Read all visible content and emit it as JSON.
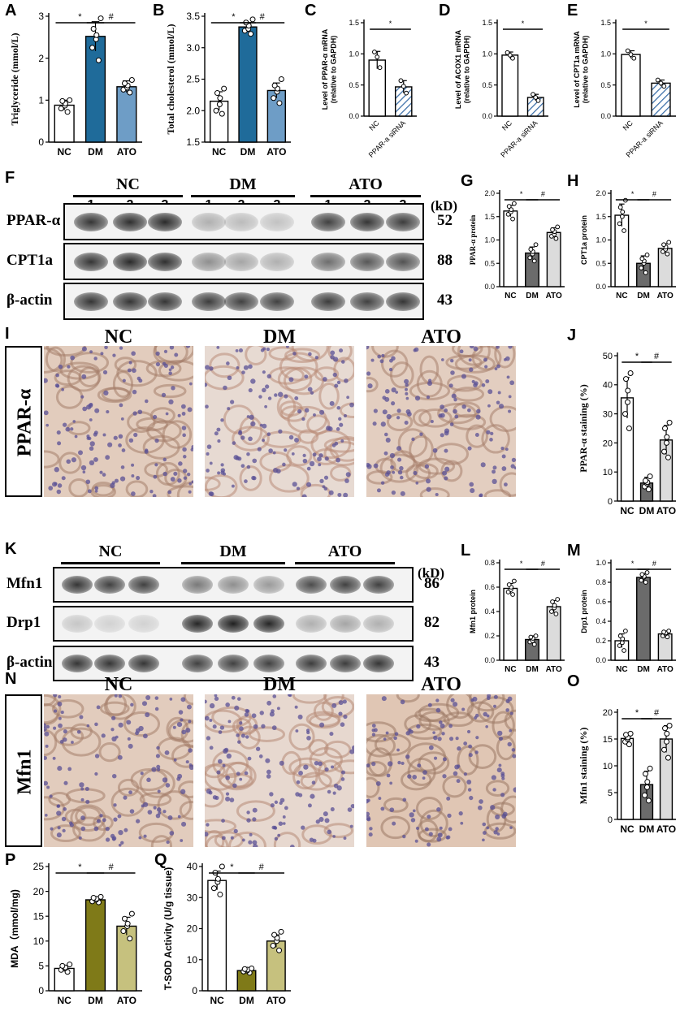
{
  "panel_letters": [
    "A",
    "B",
    "C",
    "D",
    "E",
    "F",
    "G",
    "H",
    "I",
    "J",
    "K",
    "L",
    "M",
    "N",
    "O",
    "P",
    "Q"
  ],
  "colors": {
    "nc": "#ffffff",
    "dm_blue": "#1f6b9a",
    "ato_blue": "#6e9dc6",
    "dm_gray": "#6b6b6b",
    "ato_gray": "#dcdcdc",
    "dm_olive": "#7f7a18",
    "ato_olive": "#c6c17e",
    "siRNA_hatch": "#3b6ea8"
  },
  "western_F": {
    "groups": [
      "NC",
      "DM",
      "ATO"
    ],
    "lanes": [
      "1",
      "2",
      "3",
      "1",
      "2",
      "3",
      "1",
      "2",
      "3"
    ],
    "kd_label": "(kD)",
    "rows": [
      {
        "name": "PPAR-α",
        "kd": "52",
        "intensity": [
          0.85,
          0.88,
          0.9,
          0.3,
          0.25,
          0.22,
          0.8,
          0.85,
          0.82
        ]
      },
      {
        "name": "CPT1a",
        "kd": "88",
        "intensity": [
          0.85,
          0.9,
          0.88,
          0.45,
          0.35,
          0.3,
          0.6,
          0.7,
          0.72
        ]
      },
      {
        "name": "β-actin",
        "kd": "43",
        "intensity": [
          0.85,
          0.85,
          0.85,
          0.82,
          0.8,
          0.8,
          0.82,
          0.8,
          0.85
        ]
      }
    ]
  },
  "western_K": {
    "groups": [
      "NC",
      "DM",
      "ATO"
    ],
    "lanes": [
      "1",
      "2",
      "3",
      "1",
      "2",
      "3",
      "1",
      "2",
      "3"
    ],
    "kd_label": "(kD)",
    "rows": [
      {
        "name": "Mfn1",
        "kd": "86",
        "intensity": [
          0.85,
          0.8,
          0.8,
          0.55,
          0.45,
          0.4,
          0.75,
          0.8,
          0.8
        ]
      },
      {
        "name": "Drp1",
        "kd": "82",
        "intensity": [
          0.2,
          0.15,
          0.15,
          0.92,
          0.95,
          0.92,
          0.3,
          0.35,
          0.3
        ]
      },
      {
        "name": "β-actin",
        "kd": "43",
        "intensity": [
          0.85,
          0.85,
          0.85,
          0.8,
          0.8,
          0.8,
          0.82,
          0.82,
          0.85
        ]
      }
    ]
  },
  "micro_I": {
    "side_label": "PPAR-α",
    "titles": [
      "NC",
      "DM",
      "ATO"
    ],
    "stain": [
      0.6,
      0.25,
      0.55
    ]
  },
  "micro_N": {
    "side_label": "Mfn1",
    "titles": [
      "NC",
      "DM",
      "ATO"
    ],
    "stain": [
      0.6,
      0.3,
      0.75
    ]
  },
  "chart_data": [
    {
      "id": "A",
      "type": "bar",
      "categories": [
        "NC",
        "DM",
        "ATO"
      ],
      "values": [
        0.88,
        2.52,
        1.32
      ],
      "errors": [
        0.12,
        0.35,
        0.14
      ],
      "ylabel": "Triglyceride (mmol/L)",
      "ylim": [
        0,
        3
      ],
      "yticks": [
        "0",
        "1",
        "2",
        "3"
      ],
      "tick_values": [
        0,
        1,
        2,
        3
      ],
      "sig": [
        {
          "from": 0,
          "to": 1,
          "mark": "*"
        },
        {
          "from": 1,
          "to": 2,
          "mark": "#"
        }
      ],
      "points": [
        [
          0.72,
          0.8,
          0.87,
          0.92,
          0.98,
          1.0
        ],
        [
          1.95,
          2.25,
          2.45,
          2.55,
          2.7,
          2.95
        ],
        [
          1.18,
          1.25,
          1.3,
          1.35,
          1.4,
          1.48
        ]
      ]
    },
    {
      "id": "B",
      "type": "bar",
      "categories": [
        "NC",
        "DM",
        "ATO"
      ],
      "values": [
        2.15,
        3.33,
        2.32
      ],
      "errors": [
        0.15,
        0.07,
        0.12
      ],
      "ylabel": "Total cholesterol (mmol/L)",
      "ylim": [
        1.5,
        3.5
      ],
      "yticks": [
        "1.5",
        "2.0",
        "2.5",
        "3.0",
        "3.5"
      ],
      "tick_values": [
        1.5,
        2.0,
        2.5,
        3.0,
        3.5
      ],
      "sig": [
        {
          "from": 0,
          "to": 1,
          "mark": "*"
        },
        {
          "from": 1,
          "to": 2,
          "mark": "#"
        }
      ],
      "points": [
        [
          1.95,
          2.0,
          2.1,
          2.2,
          2.28,
          2.35
        ],
        [
          3.22,
          3.27,
          3.3,
          3.35,
          3.4,
          3.45
        ],
        [
          2.12,
          2.2,
          2.3,
          2.35,
          2.4,
          2.5
        ]
      ]
    },
    {
      "id": "C",
      "type": "bar",
      "categories": [
        "NC",
        "PPAR-a siRNA"
      ],
      "values": [
        0.9,
        0.47
      ],
      "errors": [
        0.14,
        0.1
      ],
      "ylabel": "Level of PPAR-α mRNA\n(relative to GAPDH)",
      "ylim": [
        0,
        1.5
      ],
      "yticks": [
        "0.0",
        "0.5",
        "1.0",
        "1.5"
      ],
      "tick_values": [
        0,
        0.5,
        1.0,
        1.5
      ],
      "sig": [
        {
          "from": 0,
          "to": 1,
          "mark": "*"
        }
      ],
      "points": [
        [
          0.78,
          0.95,
          1.03
        ],
        [
          0.37,
          0.48,
          0.57
        ]
      ]
    },
    {
      "id": "D",
      "type": "bar",
      "categories": [
        "NC",
        "PPAR-a siRNA"
      ],
      "values": [
        0.98,
        0.3
      ],
      "errors": [
        0.05,
        0.05
      ],
      "ylabel": "Level of ACOX1 mRNA\n(relative to GAPDH)",
      "ylim": [
        0,
        1.5
      ],
      "yticks": [
        "0.0",
        "0.5",
        "1.0",
        "1.5"
      ],
      "tick_values": [
        0,
        0.5,
        1.0,
        1.5
      ],
      "sig": [
        {
          "from": 0,
          "to": 1,
          "mark": "*"
        }
      ],
      "points": [
        [
          0.93,
          0.98,
          1.02
        ],
        [
          0.25,
          0.3,
          0.35
        ]
      ]
    },
    {
      "id": "E",
      "type": "bar",
      "categories": [
        "NC",
        "PPAR-a siRNA"
      ],
      "values": [
        0.99,
        0.53
      ],
      "errors": [
        0.06,
        0.05
      ],
      "ylabel": "Level of CPT1a mRNA\n(relative to GAPDH)",
      "ylim": [
        0,
        1.5
      ],
      "yticks": [
        "0.0",
        "0.5",
        "1.0",
        "1.5"
      ],
      "tick_values": [
        0,
        0.5,
        1.0,
        1.5
      ],
      "sig": [
        {
          "from": 0,
          "to": 1,
          "mark": "*"
        }
      ],
      "points": [
        [
          0.93,
          0.99,
          1.05
        ],
        [
          0.48,
          0.53,
          0.58
        ]
      ]
    },
    {
      "id": "G",
      "type": "bar",
      "categories": [
        "NC",
        "DM",
        "ATO"
      ],
      "values": [
        1.62,
        0.72,
        1.16
      ],
      "errors": [
        0.12,
        0.13,
        0.1
      ],
      "ylabel": "PPAR-α protein",
      "ylim": [
        0,
        2.0
      ],
      "yticks": [
        "0.0",
        "0.5",
        "1.0",
        "1.5",
        "2.0"
      ],
      "tick_values": [
        0,
        0.5,
        1.0,
        1.5,
        2.0
      ],
      "sig": [
        {
          "from": 0,
          "to": 1,
          "mark": "*"
        },
        {
          "from": 1,
          "to": 2,
          "mark": "#"
        }
      ],
      "points": [
        [
          1.45,
          1.55,
          1.6,
          1.65,
          1.72,
          1.78
        ],
        [
          0.55,
          0.62,
          0.7,
          0.75,
          0.8,
          0.9
        ],
        [
          1.03,
          1.08,
          1.12,
          1.18,
          1.22,
          1.28
        ]
      ]
    },
    {
      "id": "H",
      "type": "bar",
      "categories": [
        "NC",
        "DM",
        "ATO"
      ],
      "values": [
        1.53,
        0.5,
        0.82
      ],
      "errors": [
        0.24,
        0.16,
        0.1
      ],
      "ylabel": "CPT1a protein",
      "ylim": [
        0,
        2.0
      ],
      "yticks": [
        "0.0",
        "0.5",
        "1.0",
        "1.5",
        "2.0"
      ],
      "tick_values": [
        0,
        0.5,
        1.0,
        1.5,
        2.0
      ],
      "sig": [
        {
          "from": 0,
          "to": 1,
          "mark": "*"
        },
        {
          "from": 1,
          "to": 2,
          "mark": "#"
        }
      ],
      "points": [
        [
          1.2,
          1.35,
          1.5,
          1.6,
          1.7,
          1.85
        ],
        [
          0.3,
          0.4,
          0.5,
          0.55,
          0.6,
          0.68
        ],
        [
          0.7,
          0.75,
          0.8,
          0.85,
          0.9,
          0.95
        ]
      ]
    },
    {
      "id": "J",
      "type": "bar",
      "categories": [
        "NC",
        "DM",
        "ATO"
      ],
      "values": [
        35.5,
        6.2,
        21
      ],
      "errors": [
        7,
        2,
        5
      ],
      "ylabel": "PPAR-α staining (%)",
      "ylim": [
        0,
        50
      ],
      "yticks": [
        "0",
        "10",
        "20",
        "30",
        "40",
        "50"
      ],
      "tick_values": [
        0,
        10,
        20,
        30,
        40,
        50
      ],
      "sig": [
        {
          "from": 0,
          "to": 1,
          "mark": "*"
        },
        {
          "from": 1,
          "to": 2,
          "mark": "#"
        }
      ],
      "points": [
        [
          25,
          30,
          34,
          38,
          42,
          44
        ],
        [
          4,
          5,
          6,
          6.5,
          7,
          8.5
        ],
        [
          15,
          17,
          20,
          22,
          25,
          27
        ]
      ]
    },
    {
      "id": "L",
      "type": "bar",
      "categories": [
        "NC",
        "DM",
        "ATO"
      ],
      "values": [
        0.59,
        0.17,
        0.44
      ],
      "errors": [
        0.04,
        0.03,
        0.05
      ],
      "ylabel": "Mfn1 protein",
      "ylim": [
        0,
        0.8
      ],
      "yticks": [
        "0.0",
        "0.2",
        "0.4",
        "0.6",
        "0.8"
      ],
      "tick_values": [
        0,
        0.2,
        0.4,
        0.6,
        0.8
      ],
      "sig": [
        {
          "from": 0,
          "to": 1,
          "mark": "*"
        },
        {
          "from": 1,
          "to": 2,
          "mark": "#"
        }
      ],
      "points": [
        [
          0.54,
          0.56,
          0.58,
          0.6,
          0.62,
          0.65
        ],
        [
          0.13,
          0.15,
          0.16,
          0.18,
          0.19,
          0.2
        ],
        [
          0.38,
          0.4,
          0.43,
          0.45,
          0.48,
          0.5
        ]
      ]
    },
    {
      "id": "M",
      "type": "bar",
      "categories": [
        "NC",
        "DM",
        "ATO"
      ],
      "values": [
        0.2,
        0.85,
        0.27
      ],
      "errors": [
        0.07,
        0.04,
        0.03
      ],
      "ylabel": "Drp1 protein",
      "ylim": [
        0,
        1.0
      ],
      "yticks": [
        "0.0",
        "0.2",
        "0.4",
        "0.6",
        "0.8",
        "1.0"
      ],
      "tick_values": [
        0,
        0.2,
        0.4,
        0.6,
        0.8,
        1.0
      ],
      "sig": [
        {
          "from": 0,
          "to": 1,
          "mark": "*"
        },
        {
          "from": 1,
          "to": 2,
          "mark": "#"
        }
      ],
      "points": [
        [
          0.1,
          0.15,
          0.18,
          0.22,
          0.25,
          0.3
        ],
        [
          0.8,
          0.82,
          0.85,
          0.86,
          0.88,
          0.9
        ],
        [
          0.24,
          0.25,
          0.27,
          0.28,
          0.29,
          0.3
        ]
      ]
    },
    {
      "id": "O",
      "type": "bar",
      "categories": [
        "NC",
        "DM",
        "ATO"
      ],
      "values": [
        15.1,
        6.5,
        15
      ],
      "errors": [
        1,
        2.5,
        2.5
      ],
      "ylabel": "Mfn1 staining (%)",
      "ylim": [
        0,
        20
      ],
      "yticks": [
        "0",
        "5",
        "10",
        "15",
        "20"
      ],
      "tick_values": [
        0,
        5,
        10,
        15,
        20
      ],
      "sig": [
        {
          "from": 0,
          "to": 1,
          "mark": "*"
        },
        {
          "from": 1,
          "to": 2,
          "mark": "#"
        }
      ],
      "points": [
        [
          14,
          14.5,
          15,
          15.3,
          15.8,
          16
        ],
        [
          3.5,
          4.5,
          6,
          7,
          8.5,
          9.5
        ],
        [
          11.5,
          13,
          14.5,
          16,
          17,
          17.5
        ]
      ]
    },
    {
      "id": "P",
      "type": "bar",
      "categories": [
        "NC",
        "DM",
        "ATO"
      ],
      "values": [
        4.5,
        18.3,
        13
      ],
      "errors": [
        0.6,
        0.5,
        1.8
      ],
      "ylabel": "MDA（mmol/mg)",
      "ylim": [
        0,
        25
      ],
      "yticks": [
        "0",
        "5",
        "10",
        "15",
        "20",
        "25"
      ],
      "tick_values": [
        0,
        5,
        10,
        15,
        20,
        25
      ],
      "sig": [
        {
          "from": 0,
          "to": 1,
          "mark": "*"
        },
        {
          "from": 1,
          "to": 2,
          "mark": "#"
        }
      ],
      "points": [
        [
          3.8,
          4.2,
          4.5,
          4.7,
          5.0,
          5.3
        ],
        [
          17.8,
          18,
          18.3,
          18.5,
          18.7,
          18.9
        ],
        [
          10.5,
          12,
          13,
          13.5,
          14.5,
          15.5
        ]
      ]
    },
    {
      "id": "Q",
      "type": "bar",
      "categories": [
        "NC",
        "DM",
        "ATO"
      ],
      "values": [
        35.5,
        6.5,
        16
      ],
      "errors": [
        3,
        0.7,
        2
      ],
      "ylabel": "T-SOD Activity (U/g tissue)",
      "ylim": [
        0,
        40
      ],
      "yticks": [
        "0",
        "10",
        "20",
        "30",
        "40"
      ],
      "tick_values": [
        0,
        10,
        20,
        30,
        40
      ],
      "sig": [
        {
          "from": 0,
          "to": 1,
          "mark": "*"
        },
        {
          "from": 1,
          "to": 2,
          "mark": "#"
        }
      ],
      "points": [
        [
          31,
          33,
          35,
          36,
          38,
          40
        ],
        [
          5.8,
          6.2,
          6.5,
          6.8,
          7.0,
          7.2
        ],
        [
          13,
          14.5,
          16,
          17,
          18,
          19
        ]
      ]
    }
  ]
}
